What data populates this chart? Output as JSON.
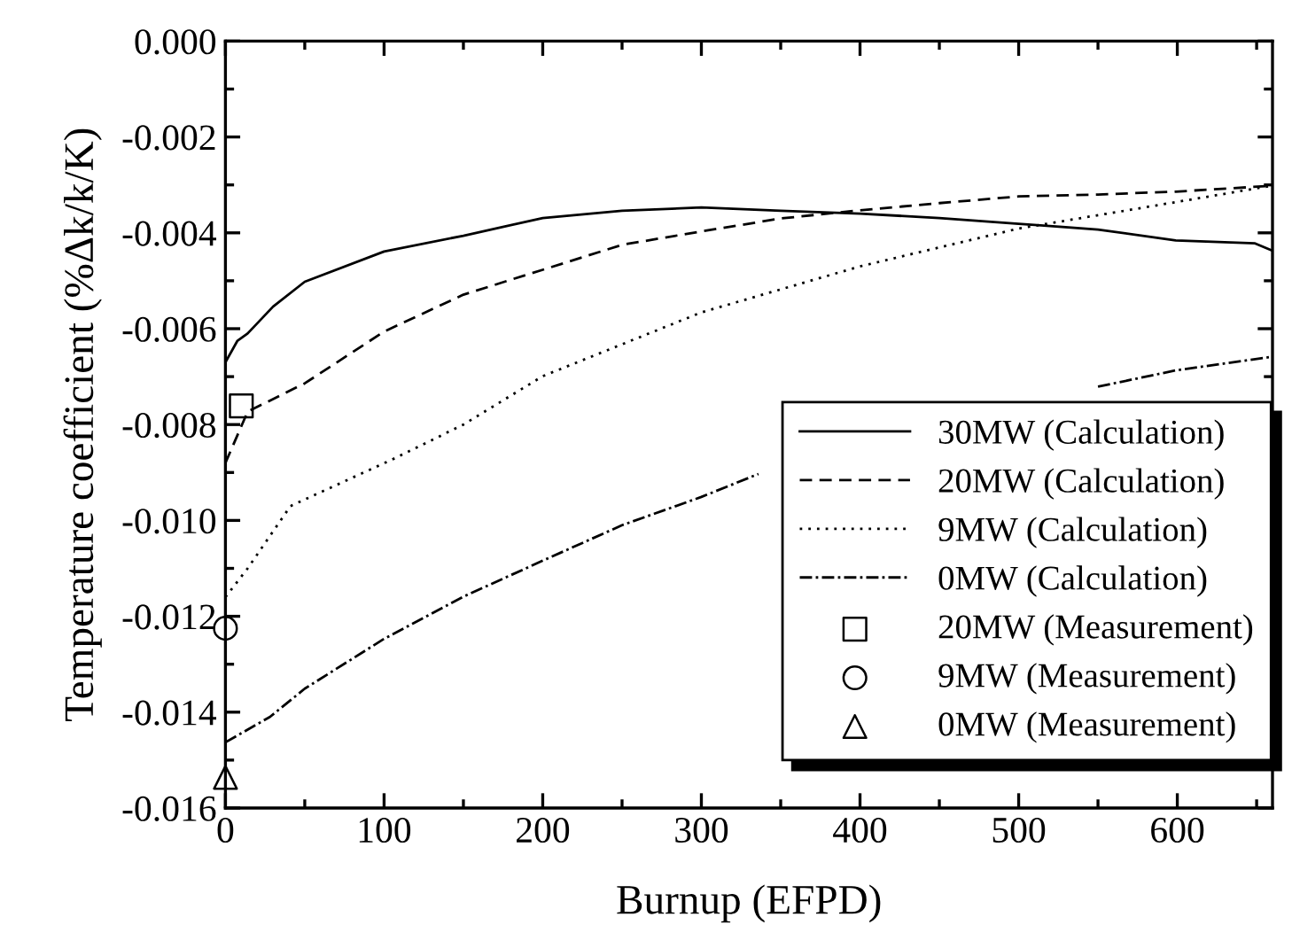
{
  "chart_data": {
    "type": "line",
    "xlabel": "Burnup (EFPD)",
    "ylabel": "Temperature coefficient (%Δk/k/K)",
    "xlim": [
      0,
      660
    ],
    "xticks": [
      0,
      100,
      200,
      300,
      400,
      500,
      600
    ],
    "ylim": [
      -0.016,
      0.0
    ],
    "yticks": [
      {
        "value": -0.016,
        "label": "-0.016"
      },
      {
        "value": -0.014,
        "label": "-0.014"
      },
      {
        "value": -0.012,
        "label": "-0.012"
      },
      {
        "value": -0.01,
        "label": "-0.010"
      },
      {
        "value": -0.008,
        "label": "-0.008"
      },
      {
        "value": -0.006,
        "label": "-0.006"
      },
      {
        "value": -0.004,
        "label": "-0.004"
      },
      {
        "value": -0.002,
        "label": "-0.002"
      },
      {
        "value": 0.0,
        "label": "0.000"
      }
    ],
    "grid": false,
    "legend": "bottom right",
    "series": [
      {
        "name": "30MW (Calculation)",
        "color": "#000000",
        "line_style": "solid",
        "marker": "none",
        "x": [
          0,
          7.6,
          14,
          30,
          50,
          100,
          150,
          200,
          250,
          300,
          350,
          400,
          450,
          500,
          550,
          599,
          649,
          659
        ],
        "values": [
          -0.0067,
          -0.00625,
          -0.0061,
          -0.00554,
          -0.00502,
          -0.00439,
          -0.00406,
          -0.00369,
          -0.00354,
          -0.00347,
          -0.00354,
          -0.0036,
          -0.00369,
          -0.00381,
          -0.00393,
          -0.00416,
          -0.00422,
          -0.00436
        ]
      },
      {
        "name": "20MW (Calculation)",
        "color": "#000000",
        "line_style": "dashed",
        "marker": "none",
        "x": [
          0,
          14,
          50,
          100,
          150,
          200,
          250,
          300,
          350,
          400,
          450,
          500,
          550,
          599,
          659
        ],
        "values": [
          -0.0088,
          -0.00773,
          -0.00714,
          -0.00606,
          -0.00529,
          -0.00477,
          -0.00425,
          -0.00397,
          -0.0037,
          -0.00353,
          -0.00338,
          -0.00324,
          -0.0032,
          -0.00314,
          -0.00302
        ]
      },
      {
        "name": "9MW (Calculation)",
        "color": "#000000",
        "line_style": "dotted",
        "marker": "none",
        "x": [
          0,
          14,
          41,
          107,
          150,
          200,
          300,
          400,
          500,
          599,
          659
        ],
        "values": [
          -0.0116,
          -0.011,
          -0.0097,
          -0.0087,
          -0.008,
          -0.00699,
          -0.00566,
          -0.0047,
          -0.00391,
          -0.00336,
          -0.00302
        ]
      },
      {
        "name": "0MW (Calculation)",
        "color": "#000000",
        "line_style": "dashdot",
        "marker": "none",
        "x": [
          0,
          28,
          50,
          100,
          150,
          200,
          250,
          300,
          336,
          400,
          500,
          550,
          599,
          659
        ],
        "values": [
          -0.01463,
          -0.0141,
          -0.01351,
          -0.01247,
          -0.01159,
          -0.01084,
          -0.0101,
          -0.00951,
          -0.00903,
          null,
          null,
          -0.00721,
          -0.00687,
          -0.00659
        ]
      },
      {
        "name": "20MW (Measurement)",
        "type": "scatter",
        "color": "#000000",
        "marker": "square",
        "x": [
          10
        ],
        "values": [
          -0.00761
        ]
      },
      {
        "name": "9MW (Measurement)",
        "type": "scatter",
        "color": "#000000",
        "marker": "circle",
        "x": [
          0
        ],
        "values": [
          -0.01225
        ]
      },
      {
        "name": "0MW (Measurement)",
        "type": "scatter",
        "color": "#000000",
        "marker": "triangle",
        "x": [
          0
        ],
        "values": [
          -0.01536
        ]
      }
    ]
  }
}
